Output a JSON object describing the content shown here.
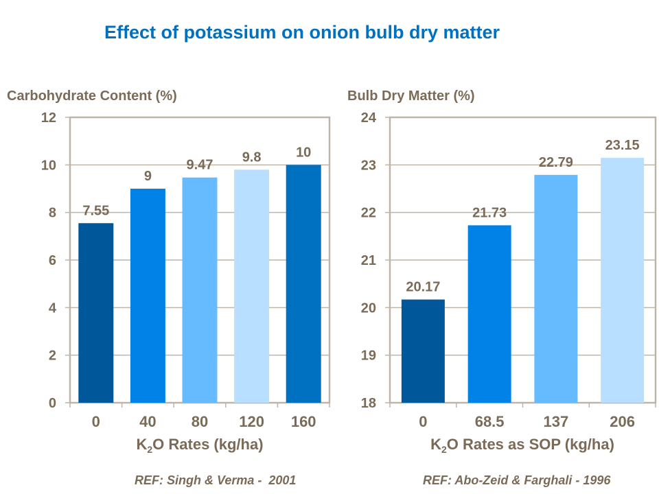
{
  "title": "Effect of potassium on onion bulb dry matter",
  "chart_data": [
    {
      "type": "bar",
      "ylabel": "Carbohydrate Content (%)",
      "xlabel_parts": [
        "K",
        "2",
        "O Rates (kg/ha)"
      ],
      "categories": [
        "0",
        "40",
        "80",
        "120",
        "160"
      ],
      "values": [
        7.55,
        9,
        9.47,
        9.8,
        10
      ],
      "data_labels": [
        "7.55",
        "9",
        "9.47",
        "9.8",
        "10"
      ],
      "ylim": [
        0,
        12
      ],
      "yticks": [
        0,
        2,
        4,
        6,
        8,
        10,
        12
      ],
      "grid": true,
      "bar_colors": [
        "#00579A",
        "#0082E6",
        "#66BBFF",
        "#B8DFFF",
        "#0070C0"
      ],
      "reference": "REF: Singh & Verma -  2001"
    },
    {
      "type": "bar",
      "ylabel": "Bulb Dry Matter (%)",
      "xlabel_parts": [
        "K",
        "2",
        "O Rates as SOP (kg/ha)"
      ],
      "categories": [
        "0",
        "68.5",
        "137",
        "206"
      ],
      "values": [
        20.17,
        21.73,
        22.79,
        23.15
      ],
      "data_labels": [
        "20.17",
        "21.73",
        "22.79",
        "23.15"
      ],
      "ylim": [
        18,
        24
      ],
      "yticks": [
        18,
        19,
        20,
        21,
        22,
        23,
        24
      ],
      "grid": true,
      "bar_colors": [
        "#00579A",
        "#0082E6",
        "#66BBFF",
        "#B8DFFF"
      ],
      "reference": "REF: Abo-Zeid & Farghali - 1996"
    }
  ],
  "colors": {
    "title": "#0070C0",
    "text": "#7A6A58",
    "grid": "#BFB4A8"
  }
}
